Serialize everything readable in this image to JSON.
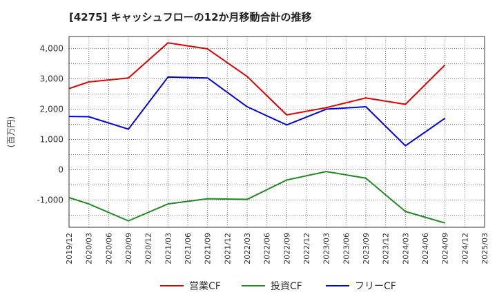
{
  "chart_data": {
    "type": "line",
    "title": "[4275]  キャッシュフローの12か月移動合計の推移",
    "ylabel": "(百万円)",
    "xlabel": "",
    "ylim": [
      -1900,
      4400
    ],
    "yticks": [
      -1000,
      0,
      1000,
      2000,
      3000,
      4000
    ],
    "ytick_labels": [
      "-1,000",
      "0",
      "1,000",
      "2,000",
      "3,000",
      "4,000"
    ],
    "x_ticks": [
      "2019/12",
      "2020/03",
      "2020/06",
      "2020/09",
      "2020/12",
      "2021/03",
      "2021/06",
      "2021/09",
      "2021/12",
      "2022/03",
      "2022/06",
      "2022/09",
      "2022/12",
      "2023/03",
      "2023/06",
      "2023/09",
      "2023/12",
      "2024/03",
      "2024/06",
      "2024/09",
      "2024/12",
      "2025/03"
    ],
    "grid": true,
    "legend_position": "bottom",
    "series": [
      {
        "name": "営業CF",
        "color": "#dd0000",
        "points": [
          {
            "x": "2019/12",
            "y": 2680
          },
          {
            "x": "2020/03",
            "y": 2900
          },
          {
            "x": "2020/09",
            "y": 3030
          },
          {
            "x": "2021/03",
            "y": 4190
          },
          {
            "x": "2021/09",
            "y": 3990
          },
          {
            "x": "2022/03",
            "y": 3080
          },
          {
            "x": "2022/09",
            "y": 1810
          },
          {
            "x": "2023/03",
            "y": 2050
          },
          {
            "x": "2023/09",
            "y": 2370
          },
          {
            "x": "2024/03",
            "y": 2160
          },
          {
            "x": "2024/09",
            "y": 3460
          }
        ]
      },
      {
        "name": "投資CF",
        "color": "#228822",
        "points": [
          {
            "x": "2019/12",
            "y": -920
          },
          {
            "x": "2020/03",
            "y": -1130
          },
          {
            "x": "2020/09",
            "y": -1690
          },
          {
            "x": "2021/03",
            "y": -1130
          },
          {
            "x": "2021/09",
            "y": -960
          },
          {
            "x": "2022/03",
            "y": -980
          },
          {
            "x": "2022/09",
            "y": -340
          },
          {
            "x": "2023/03",
            "y": -60
          },
          {
            "x": "2023/09",
            "y": -280
          },
          {
            "x": "2024/03",
            "y": -1380
          },
          {
            "x": "2024/09",
            "y": -1760
          }
        ]
      },
      {
        "name": "フリーCF",
        "color": "#0000dd",
        "points": [
          {
            "x": "2019/12",
            "y": 1760
          },
          {
            "x": "2020/03",
            "y": 1750
          },
          {
            "x": "2020/09",
            "y": 1340
          },
          {
            "x": "2021/03",
            "y": 3060
          },
          {
            "x": "2021/09",
            "y": 3030
          },
          {
            "x": "2022/03",
            "y": 2080
          },
          {
            "x": "2022/09",
            "y": 1480
          },
          {
            "x": "2023/03",
            "y": 2000
          },
          {
            "x": "2023/09",
            "y": 2080
          },
          {
            "x": "2024/03",
            "y": 790
          },
          {
            "x": "2024/09",
            "y": 1700
          }
        ]
      }
    ]
  }
}
